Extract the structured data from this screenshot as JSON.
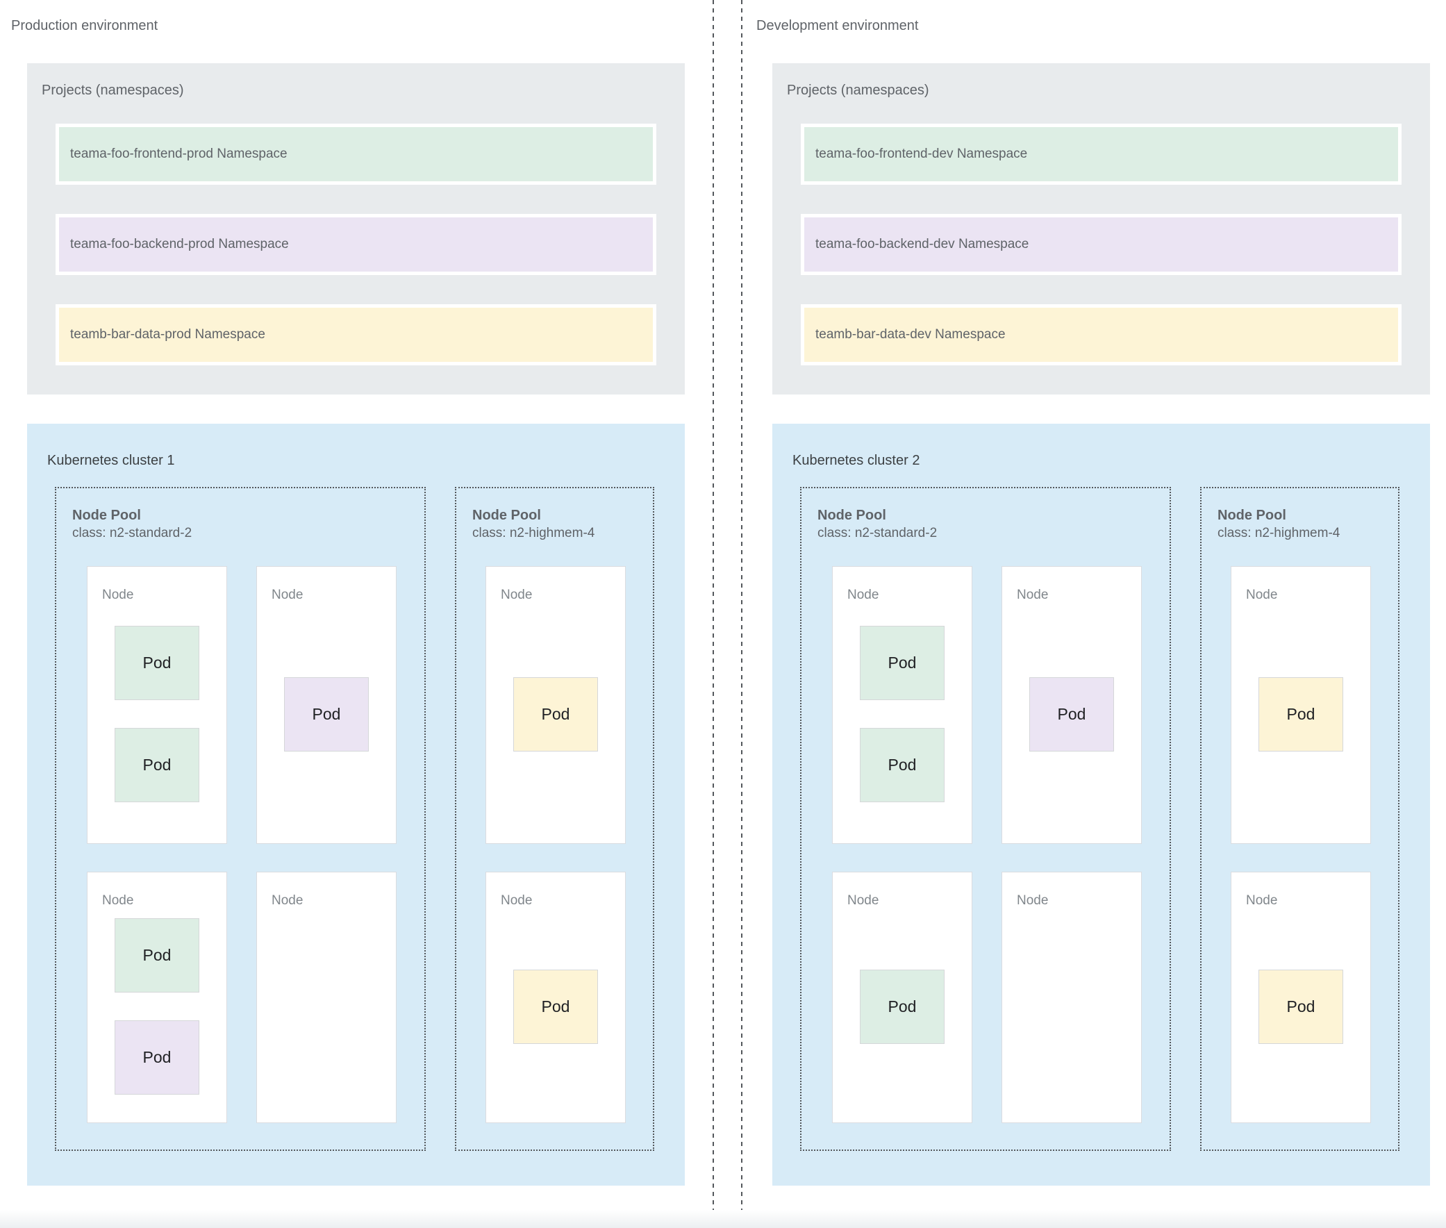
{
  "colors": {
    "page_bg": "#ffffff",
    "panel_gray": "#e8ebed",
    "panel_blue": "#d7ebf7",
    "green": "#ddeee4",
    "purple": "#ebe4f3",
    "yellow": "#fdf4d6",
    "node_bg": "#ffffff",
    "node_border": "#dadce0",
    "pod_border": "#d5d7d9",
    "dotted": "#53575b",
    "text_gray": "#5f6368",
    "text_soft": "#80868b",
    "text_dark": "#3c4043",
    "pod_text": "#202124",
    "footer_fade": "#eceff1"
  },
  "environments": [
    {
      "title": "Production environment",
      "projects_panel": {
        "title": "Projects (namespaces)",
        "namespaces": [
          {
            "label": "teama-foo-frontend-prod Namespace",
            "color": "green"
          },
          {
            "label": "teama-foo-backend-prod Namespace",
            "color": "purple"
          },
          {
            "label": "teamb-bar-data-prod Namespace",
            "color": "yellow"
          }
        ]
      },
      "cluster": {
        "title": "Kubernetes cluster 1",
        "node_pools": [
          {
            "title": "Node Pool",
            "class_line": "class: n2-standard-2",
            "nodes": [
              {
                "label": "Node",
                "pods": [
                  {
                    "label": "Pod",
                    "color": "green"
                  },
                  {
                    "label": "Pod",
                    "color": "green"
                  }
                ]
              },
              {
                "label": "Node",
                "pods": [
                  {
                    "label": "Pod",
                    "color": "purple"
                  }
                ]
              },
              {
                "label": "Node",
                "pods": [
                  {
                    "label": "Pod",
                    "color": "green"
                  },
                  {
                    "label": "Pod",
                    "color": "purple"
                  }
                ]
              },
              {
                "label": "Node",
                "pods": []
              }
            ]
          },
          {
            "title": "Node Pool",
            "class_line": "class: n2-highmem-4",
            "nodes": [
              {
                "label": "Node",
                "pods": [
                  {
                    "label": "Pod",
                    "color": "yellow"
                  }
                ]
              },
              {
                "label": "Node",
                "pods": [
                  {
                    "label": "Pod",
                    "color": "yellow"
                  }
                ]
              }
            ]
          }
        ]
      }
    },
    {
      "title": "Development environment",
      "projects_panel": {
        "title": "Projects (namespaces)",
        "namespaces": [
          {
            "label": "teama-foo-frontend-dev Namespace",
            "color": "green"
          },
          {
            "label": "teama-foo-backend-dev Namespace",
            "color": "purple"
          },
          {
            "label": "teamb-bar-data-dev Namespace",
            "color": "yellow"
          }
        ]
      },
      "cluster": {
        "title": "Kubernetes cluster 2",
        "node_pools": [
          {
            "title": "Node Pool",
            "class_line": "class: n2-standard-2",
            "nodes": [
              {
                "label": "Node",
                "pods": [
                  {
                    "label": "Pod",
                    "color": "green"
                  },
                  {
                    "label": "Pod",
                    "color": "green"
                  }
                ]
              },
              {
                "label": "Node",
                "pods": [
                  {
                    "label": "Pod",
                    "color": "purple"
                  }
                ]
              },
              {
                "label": "Node",
                "pods": [
                  {
                    "label": "Pod",
                    "color": "green"
                  }
                ]
              },
              {
                "label": "Node",
                "pods": []
              }
            ]
          },
          {
            "title": "Node Pool",
            "class_line": "class: n2-highmem-4",
            "nodes": [
              {
                "label": "Node",
                "pods": [
                  {
                    "label": "Pod",
                    "color": "yellow"
                  }
                ]
              },
              {
                "label": "Node",
                "pods": [
                  {
                    "label": "Pod",
                    "color": "yellow"
                  }
                ]
              }
            ]
          }
        ]
      }
    }
  ]
}
